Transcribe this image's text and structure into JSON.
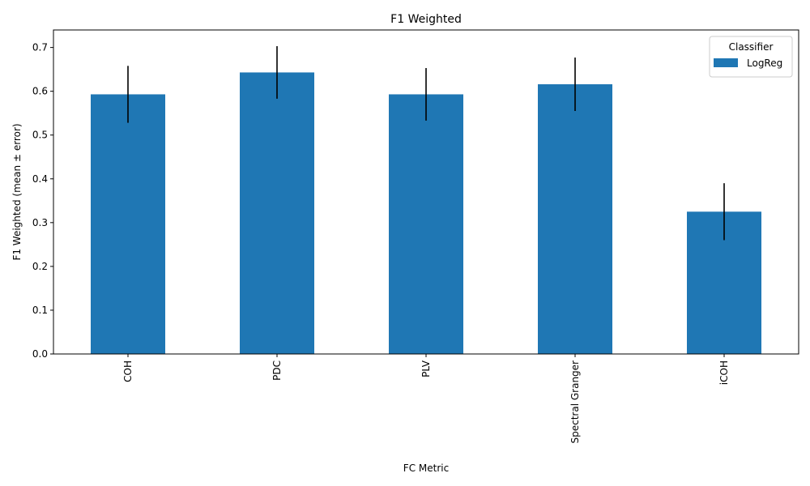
{
  "chart_data": {
    "type": "bar",
    "title": "F1 Weighted",
    "xlabel": "FC Metric",
    "ylabel": "F1 Weighted (mean ± error)",
    "categories": [
      "COH",
      "PDC",
      "PLV",
      "Spectral Granger",
      "iCOH"
    ],
    "series": [
      {
        "name": "LogReg",
        "color": "#1f77b4",
        "values": [
          0.593,
          0.643,
          0.593,
          0.616,
          0.325
        ],
        "errors": [
          0.065,
          0.06,
          0.06,
          0.061,
          0.065
        ]
      }
    ],
    "ylim": [
      0,
      0.74
    ],
    "yticks": [
      "0.0",
      "0.1",
      "0.2",
      "0.3",
      "0.4",
      "0.5",
      "0.6",
      "0.7"
    ],
    "grid": false,
    "legend": {
      "title": "Classifier",
      "position": "top-right"
    },
    "error_bar_color": "#000000"
  }
}
